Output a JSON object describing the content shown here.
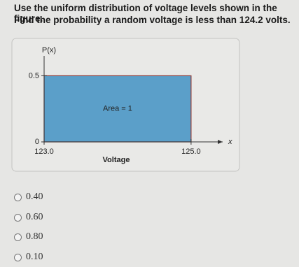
{
  "question": [
    "Use the uniform distribution of voltage levels shown in the figure.",
    "Find the probability a random voltage is less than 124.2 volts."
  ],
  "chart_data": {
    "type": "area",
    "ylabel": "P(x)",
    "xlabel": "Voltage",
    "x_axis_symbol": "x",
    "annotation": "Area = 1",
    "x": [
      123,
      125
    ],
    "values": [
      0.5,
      0.5
    ],
    "color": "#5b9fc9",
    "edge_color": "#8a3b3b",
    "xlim": [
      123,
      125.43
    ],
    "ylim": [
      0,
      0.65
    ],
    "xticks": [
      {
        "value": 123,
        "label": "123.0"
      },
      {
        "value": 125,
        "label": "125.0"
      }
    ],
    "yticks": [
      0,
      0.5
    ]
  },
  "options": [
    "0.40",
    "0.60",
    "0.80",
    "0.10"
  ]
}
